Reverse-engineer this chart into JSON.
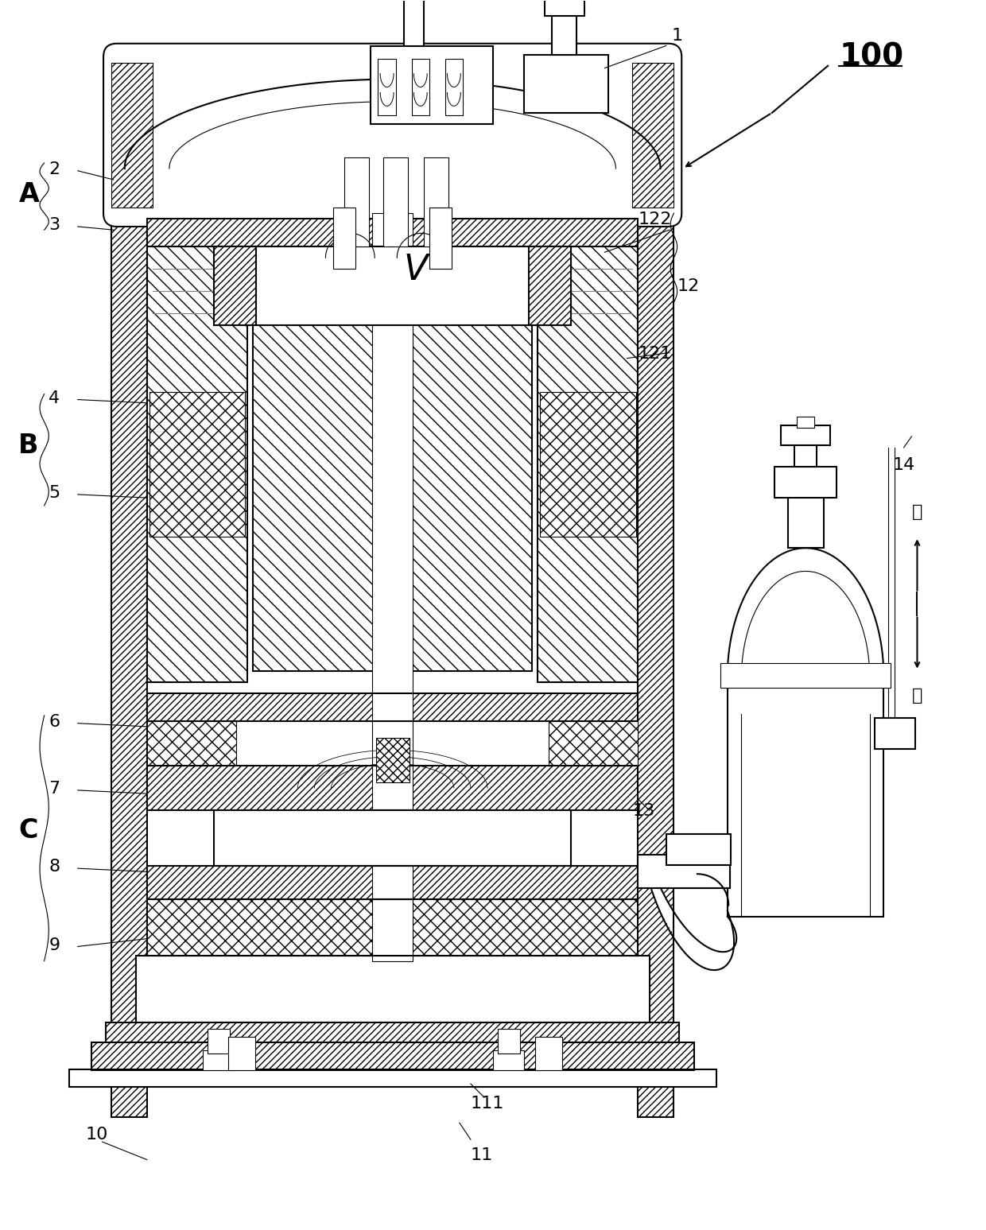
{
  "bg_color": "#ffffff",
  "lc": "#1a1a1a",
  "figsize": [
    12.4,
    15.47
  ],
  "dpi": 100,
  "xlim": [
    0,
    880
  ],
  "ylim": [
    0,
    1100
  ],
  "labels": {
    "ref100": "100",
    "p1": "1",
    "p2": "2",
    "p3": "3",
    "p4": "4",
    "p5": "5",
    "p6": "6",
    "p7": "7",
    "p8": "8",
    "p9": "9",
    "p10": "10",
    "p11": "11",
    "p111": "111",
    "p12": "12",
    "p121": "121",
    "p122": "122",
    "p13": "13",
    "p14": "14",
    "A": "A",
    "B": "B",
    "C": "C",
    "V": "V",
    "up": "上",
    "down": "下"
  },
  "lw_main": 1.5,
  "lw_thin": 0.8,
  "lw_thick": 2.2,
  "hatch_lw": 0.5
}
